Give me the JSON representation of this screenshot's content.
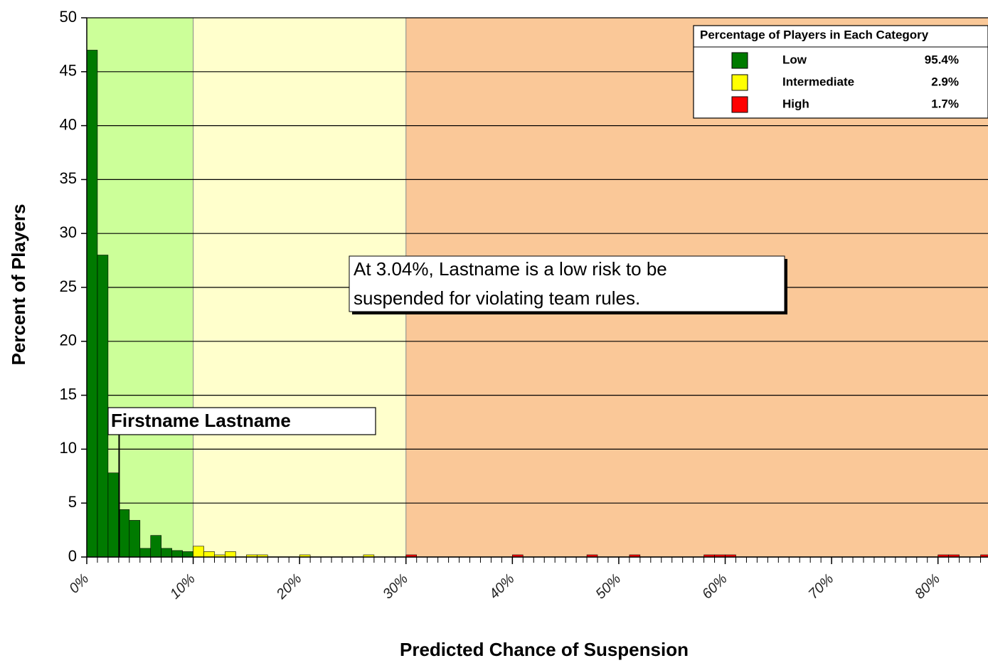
{
  "chart_data": {
    "type": "histogram",
    "xlabel": "Predicted Chance of Suspension",
    "ylabel": "Percent of Players",
    "bins": [
      0,
      1,
      2,
      3,
      4,
      5,
      6,
      7,
      8,
      9,
      10,
      11,
      12,
      13,
      14,
      15,
      16,
      17,
      18,
      19,
      20,
      21,
      22,
      23,
      24,
      25,
      26,
      27,
      28,
      29,
      30,
      31,
      32,
      33,
      34,
      35,
      36,
      37,
      38,
      39,
      40,
      41,
      42,
      43,
      44,
      45,
      46,
      47,
      48,
      49,
      50,
      51,
      52,
      53,
      54,
      55,
      56,
      57,
      58,
      59,
      60,
      61,
      62,
      63,
      64,
      65,
      66,
      67,
      68,
      69,
      70,
      71,
      72,
      73,
      74,
      75,
      76,
      77,
      78,
      79,
      80,
      81,
      82,
      83,
      84,
      85
    ],
    "values": [
      47,
      28,
      7.8,
      4.4,
      3.4,
      0.8,
      2.0,
      0.8,
      0.6,
      0.5,
      1.0,
      0.5,
      0.2,
      0.5,
      0,
      0.2,
      0.2,
      0,
      0,
      0,
      0.2,
      0,
      0,
      0,
      0,
      0,
      0.2,
      0,
      0,
      0,
      0.2,
      0,
      0,
      0,
      0,
      0,
      0,
      0,
      0,
      0,
      0.2,
      0,
      0,
      0,
      0,
      0,
      0,
      0.2,
      0,
      0,
      0,
      0.2,
      0,
      0,
      0,
      0,
      0,
      0,
      0.2,
      0.2,
      0.2,
      0,
      0,
      0,
      0,
      0,
      0,
      0,
      0,
      0,
      0,
      0,
      0,
      0,
      0,
      0,
      0,
      0,
      0,
      0,
      0.2,
      0.2,
      0,
      0,
      0.2
    ],
    "xlim": [
      0,
      84.7
    ],
    "ylim": [
      0,
      50
    ],
    "yticks": [
      0,
      5,
      10,
      15,
      20,
      25,
      30,
      35,
      40,
      45,
      50
    ],
    "xticks": [
      {
        "value": 0,
        "label": "0%"
      },
      {
        "value": 10,
        "label": "10%"
      },
      {
        "value": 20,
        "label": "20%"
      },
      {
        "value": 30,
        "label": "30%"
      },
      {
        "value": 40,
        "label": "40%"
      },
      {
        "value": 50,
        "label": "50%"
      },
      {
        "value": 60,
        "label": "60%"
      },
      {
        "value": 70,
        "label": "70%"
      },
      {
        "value": 80,
        "label": "80%"
      }
    ],
    "grid": true,
    "category_edges": [
      0,
      10,
      30
    ],
    "bar_colors": [
      "#007a00",
      "#ffff00",
      "#ff0000"
    ],
    "band_colors": [
      "#ccff99",
      "#ffffcc",
      "#fac898"
    ],
    "legend": {
      "title": "Percentage of Players in Each Category",
      "categories": [
        "Low",
        "Intermediate",
        "High"
      ],
      "values": [
        95.4,
        2.9,
        1.7
      ],
      "value_labels": [
        "95.4%",
        "2.9%",
        "1.7%"
      ],
      "position": "upper right"
    },
    "marker": {
      "label": "Firstname Lastname",
      "x": 3.04
    },
    "annotation": [
      "At 3.04%, Lastname is a low risk to be",
      "suspended for violating team rules."
    ]
  }
}
